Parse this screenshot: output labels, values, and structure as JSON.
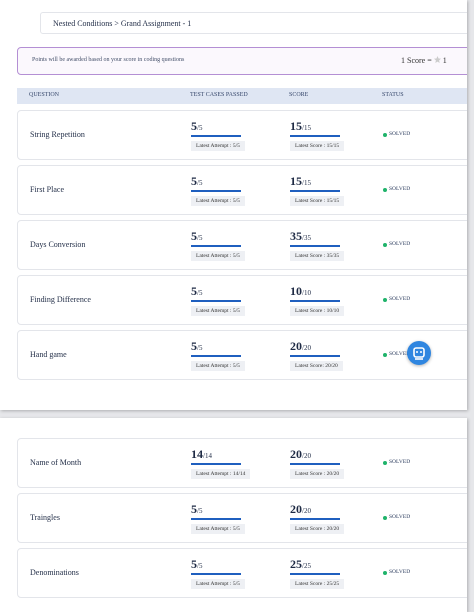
{
  "header": {
    "breadcrumb": "Nested Conditions > Grand Assignment - 1"
  },
  "notice": {
    "text": "Points will be awarded based on your score in coding questions",
    "rate_label": "1 Score =",
    "rate_value": "1"
  },
  "table": {
    "columns": [
      "QUESTION",
      "TEST CASES PASSED",
      "SCORE",
      "STATUS"
    ],
    "rows": [
      {
        "question": "String Repetition",
        "passed": "5",
        "total": "/5",
        "latest_attempt": "Latest Attempt : 5/5",
        "score": "15",
        "max": "/15",
        "latest_score": "Latest Score : 15/15",
        "status": "SOLVED"
      },
      {
        "question": "First Place",
        "passed": "5",
        "total": "/5",
        "latest_attempt": "Latest Attempt : 5/5",
        "score": "15",
        "max": "/15",
        "latest_score": "Latest Score : 15/15",
        "status": "SOLVED"
      },
      {
        "question": "Days Conversion",
        "passed": "5",
        "total": "/5",
        "latest_attempt": "Latest Attempt : 5/5",
        "score": "35",
        "max": "/35",
        "latest_score": "Latest Score : 35/35",
        "status": "SOLVED"
      },
      {
        "question": "Finding Difference",
        "passed": "5",
        "total": "/5",
        "latest_attempt": "Latest Attempt : 5/5",
        "score": "10",
        "max": "/10",
        "latest_score": "Latest Score : 10/10",
        "status": "SOLVED"
      },
      {
        "question": "Hand game",
        "passed": "5",
        "total": "/5",
        "latest_attempt": "Latest Attempt : 5/5",
        "score": "20",
        "max": "/20",
        "latest_score": "Latest Score: 20/20",
        "status": "SOLVED"
      }
    ]
  },
  "table_continued": {
    "rows": [
      {
        "question": "Name of Month",
        "passed": "14",
        "total": "/14",
        "latest_attempt": "Latest Attempt : 14/14",
        "score": "20",
        "max": "/20",
        "latest_score": "Latest Score : 20/20",
        "status": "SOLVED"
      },
      {
        "question": "Traingles",
        "passed": "5",
        "total": "/5",
        "latest_attempt": "Latest Attempt : 5/5",
        "score": "20",
        "max": "/20",
        "latest_score": "Latest Score : 20/20",
        "status": "SOLVED"
      },
      {
        "question": "Denominations",
        "passed": "5",
        "total": "/5",
        "latest_attempt": "Latest Attempt : 5/5",
        "score": "25",
        "max": "/25",
        "latest_score": "Latest Score : 25/25",
        "status": "SOLVED"
      }
    ]
  }
}
